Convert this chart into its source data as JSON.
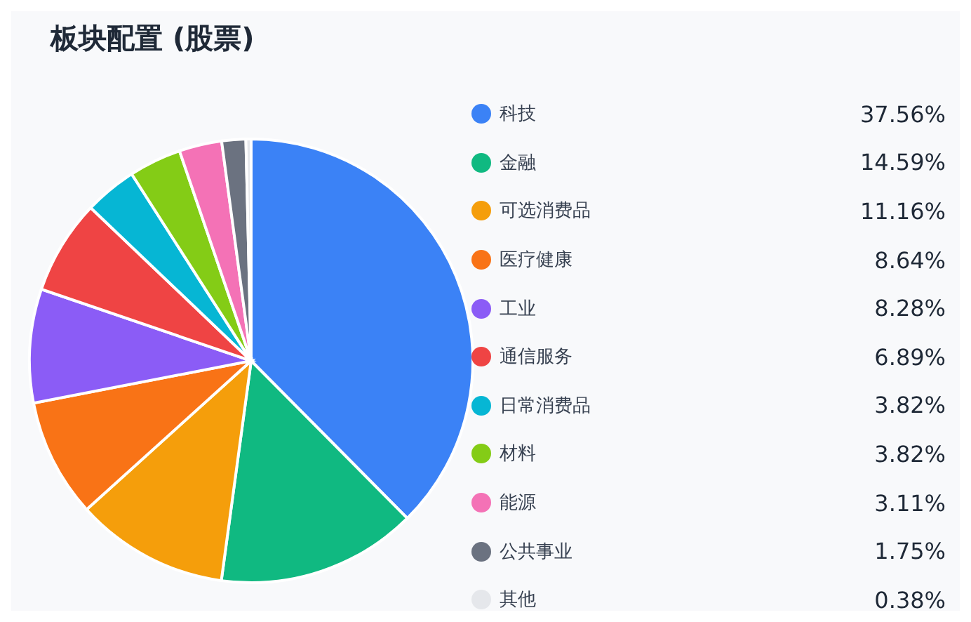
{
  "chart_data": {
    "type": "pie",
    "title": "板块配置 (股票)",
    "categories": [
      "科技",
      "金融",
      "可选消费品",
      "医疗健康",
      "工业",
      "通信服务",
      "日常消费品",
      "材料",
      "能源",
      "公共事业",
      "其他"
    ],
    "values": [
      37.56,
      14.59,
      11.16,
      8.64,
      8.28,
      6.89,
      3.82,
      3.82,
      3.11,
      1.75,
      0.38
    ],
    "colors": [
      "#3b82f6",
      "#10b981",
      "#f59e0b",
      "#f97316",
      "#8b5cf6",
      "#ef4444",
      "#06b6d4",
      "#84cc16",
      "#f472b6",
      "#6b7280",
      "#e5e7eb"
    ],
    "value_labels": [
      "37.56%",
      "14.59%",
      "11.16%",
      "8.64%",
      "8.28%",
      "6.89%",
      "3.82%",
      "3.82%",
      "3.11%",
      "1.75%",
      "0.38%"
    ],
    "legend": "right"
  }
}
